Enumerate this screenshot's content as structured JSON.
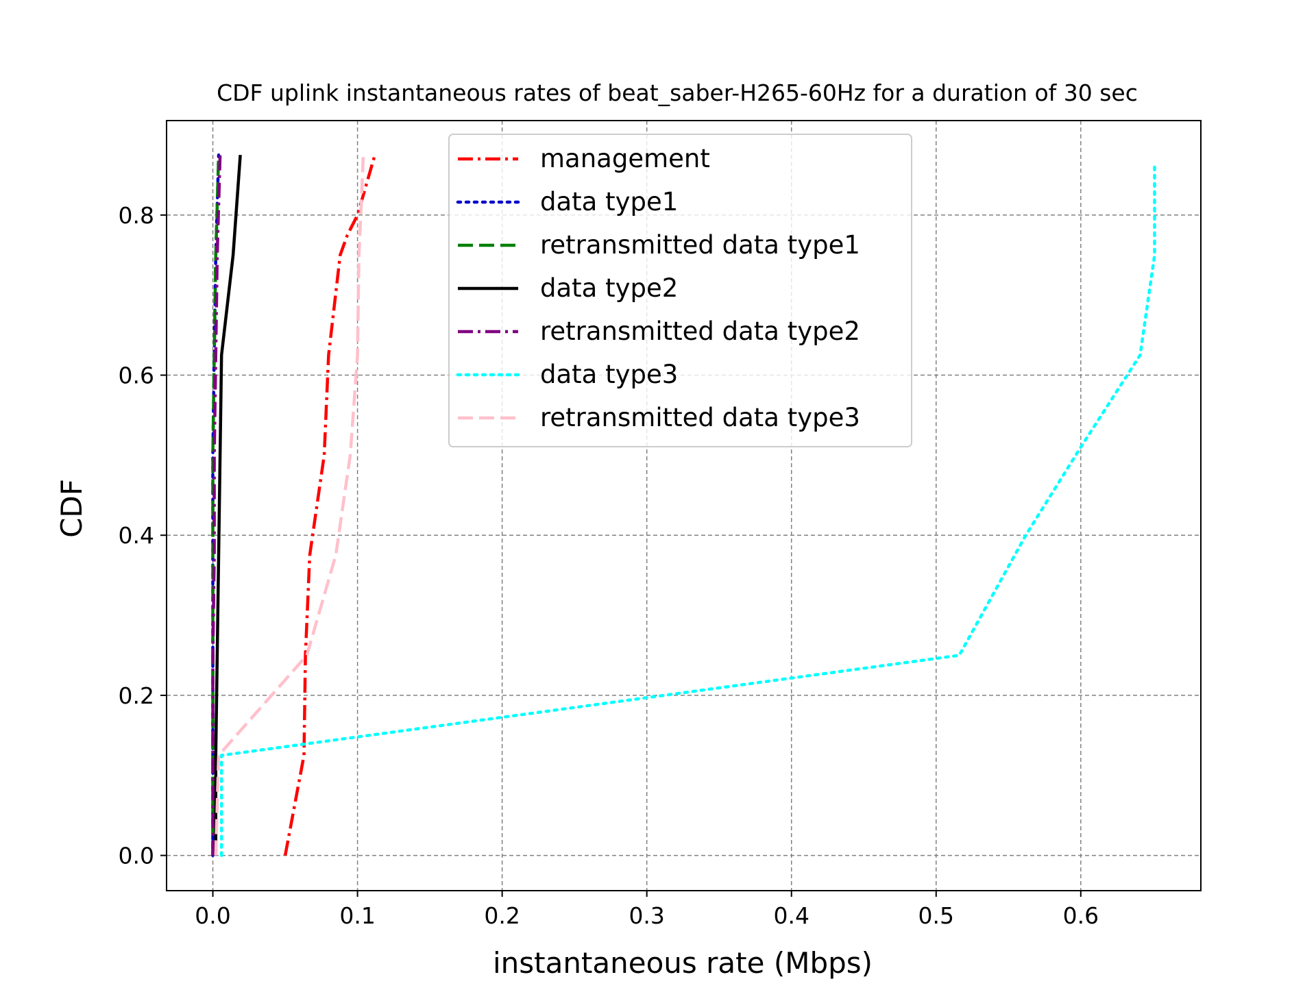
{
  "chart_data": {
    "type": "line",
    "title": "CDF uplink instantaneous rates of beat_saber-H265-60Hz for a duration of 30 sec",
    "xlabel": "instantaneous rate (Mbps)",
    "ylabel": "CDF",
    "xlim": [
      -0.032,
      0.683
    ],
    "ylim": [
      -0.044,
      0.918
    ],
    "xticks": [
      0.0,
      0.1,
      0.2,
      0.3,
      0.4,
      0.5,
      0.6
    ],
    "xtick_labels": [
      "0.0",
      "0.1",
      "0.2",
      "0.3",
      "0.4",
      "0.5",
      "0.6"
    ],
    "yticks": [
      0.0,
      0.2,
      0.4,
      0.6,
      0.8
    ],
    "ytick_labels": [
      "0.0",
      "0.2",
      "0.4",
      "0.6",
      "0.8"
    ],
    "grid": true,
    "legend_position": "top-center",
    "series": [
      {
        "name": "management",
        "color": "#ff0000",
        "style": "dashdot",
        "x": [
          0.05,
          0.063,
          0.064,
          0.067,
          0.077,
          0.08,
          0.088,
          0.093,
          0.1,
          0.112
        ],
        "y": [
          0.0,
          0.125,
          0.25,
          0.375,
          0.5,
          0.625,
          0.75,
          0.775,
          0.8,
          0.875
        ]
      },
      {
        "name": "data type1",
        "color": "#0000cc",
        "style": "dotted",
        "x": [
          0.0,
          0.0,
          0.0,
          0.0,
          0.0,
          0.001,
          0.002,
          0.004
        ],
        "y": [
          0.0,
          0.125,
          0.25,
          0.375,
          0.5,
          0.625,
          0.75,
          0.875
        ]
      },
      {
        "name": "retransmitted data type1",
        "color": "#007f00",
        "style": "dashed",
        "x": [
          0.0,
          0.0,
          0.0,
          0.0,
          0.0,
          0.001,
          0.002,
          0.004
        ],
        "y": [
          0.0,
          0.125,
          0.25,
          0.375,
          0.5,
          0.625,
          0.75,
          0.875
        ]
      },
      {
        "name": "data type2",
        "color": "#000000",
        "style": "solid",
        "x": [
          0.002,
          0.002,
          0.003,
          0.004,
          0.005,
          0.006,
          0.014,
          0.019
        ],
        "y": [
          0.0,
          0.125,
          0.25,
          0.375,
          0.5,
          0.625,
          0.75,
          0.875
        ]
      },
      {
        "name": "retransmitted data type2",
        "color": "#800080",
        "style": "dashdot",
        "x": [
          0.0,
          0.0,
          0.0,
          0.001,
          0.001,
          0.002,
          0.003,
          0.005
        ],
        "y": [
          0.0,
          0.125,
          0.25,
          0.375,
          0.5,
          0.625,
          0.75,
          0.875
        ]
      },
      {
        "name": "data type3",
        "color": "#00ffff",
        "style": "dotted",
        "x": [
          0.006,
          0.006,
          0.516,
          0.562,
          0.6,
          0.641,
          0.651,
          0.651
        ],
        "y": [
          0.0,
          0.125,
          0.25,
          0.4,
          0.51,
          0.625,
          0.75,
          0.865
        ]
      },
      {
        "name": "retransmitted data type3",
        "color": "#ffc0cb",
        "style": "dashed",
        "x": [
          0.002,
          0.004,
          0.065,
          0.085,
          0.095,
          0.1,
          0.101,
          0.103,
          0.104
        ],
        "y": [
          0.0,
          0.125,
          0.25,
          0.375,
          0.5,
          0.625,
          0.75,
          0.83,
          0.875
        ]
      }
    ]
  }
}
